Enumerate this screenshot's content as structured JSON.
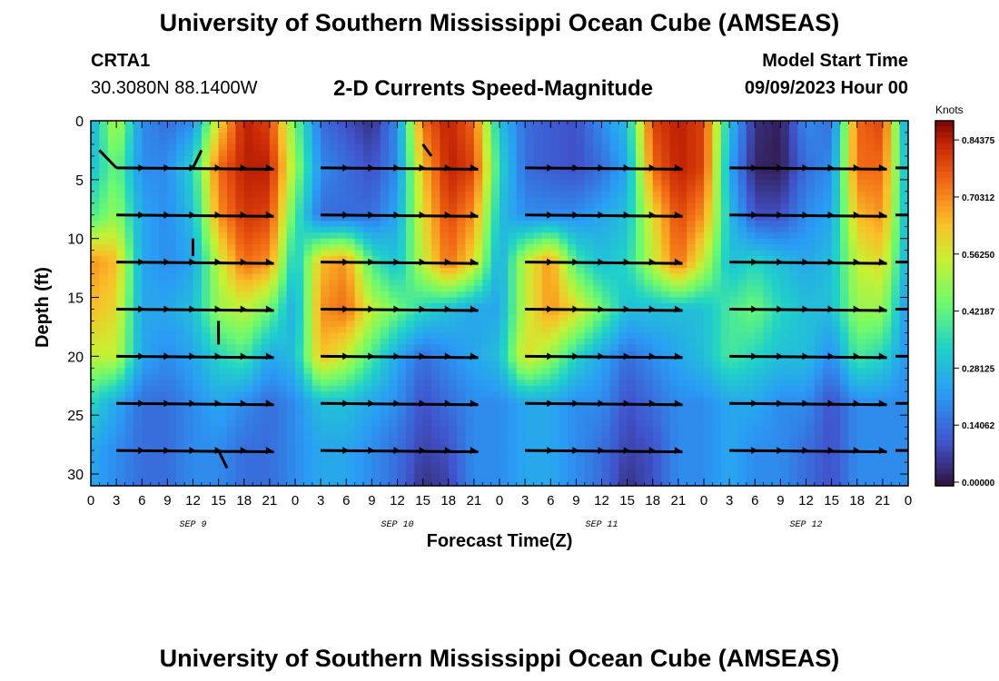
{
  "header": {
    "title": "University of Southern Mississippi Ocean Cube (AMSEAS)",
    "station": "CRTA1",
    "coords": "30.3080N  88.1400W",
    "subtitle": "2-D Currents Speed-Magnitude",
    "model_label": "Model Start Time",
    "model_time": "09/09/2023 Hour 00"
  },
  "footer": {
    "title": "University of Southern Mississippi Ocean Cube (AMSEAS)"
  },
  "chart_data": {
    "type": "heatmap",
    "title": "2-D Currents Speed-Magnitude",
    "xlabel": "Forecast Time(Z)",
    "ylabel": "Depth (ft)",
    "x_range_hours": [
      0,
      96
    ],
    "ylim": [
      0,
      31
    ],
    "y_inverted": true,
    "x_ticks": [
      "0",
      "3",
      "6",
      "9",
      "12",
      "15",
      "18",
      "21",
      "0",
      "3",
      "6",
      "9",
      "12",
      "15",
      "18",
      "21",
      "0",
      "3",
      "6",
      "9",
      "12",
      "15",
      "18",
      "21",
      "0",
      "3",
      "6",
      "9",
      "12",
      "15",
      "18",
      "21",
      "0"
    ],
    "y_ticks": [
      0,
      5,
      10,
      15,
      20,
      25,
      30
    ],
    "date_labels": [
      {
        "label": "SEP 9",
        "hour": 12
      },
      {
        "label": "SEP 10",
        "hour": 36
      },
      {
        "label": "SEP 11",
        "hour": 60
      },
      {
        "label": "SEP 12",
        "hour": 84
      }
    ],
    "colorbar": {
      "label": "Knots",
      "ticks": [
        "0.84375",
        "0.70312",
        "0.56250",
        "0.42187",
        "0.28125",
        "0.14062",
        "0.00000"
      ],
      "min": 0,
      "max": 0.9
    },
    "arrow_depths_ft": [
      4,
      8,
      12,
      16,
      20,
      24,
      28
    ],
    "speed_field": {
      "note": "Approximate current speed (knots) read from color shading; rows by depth, columns every 3 hours 0..96",
      "depths_ft": [
        0,
        4,
        8,
        12,
        16,
        20,
        24,
        28,
        31
      ],
      "hours": [
        0,
        3,
        6,
        9,
        12,
        15,
        18,
        21,
        24,
        27,
        30,
        33,
        36,
        39,
        42,
        45,
        48,
        51,
        54,
        57,
        60,
        63,
        66,
        69,
        72,
        75,
        78,
        81,
        84,
        87,
        90,
        93,
        96
      ],
      "values": [
        [
          0.25,
          0.55,
          0.2,
          0.15,
          0.2,
          0.6,
          0.85,
          0.8,
          0.45,
          0.15,
          0.1,
          0.05,
          0.2,
          0.75,
          0.85,
          0.75,
          0.3,
          0.15,
          0.12,
          0.1,
          0.2,
          0.3,
          0.8,
          0.85,
          0.8,
          0.3,
          0.05,
          0.02,
          0.2,
          0.15,
          0.75,
          0.8,
          0.2
        ],
        [
          0.3,
          0.45,
          0.2,
          0.2,
          0.35,
          0.75,
          0.85,
          0.85,
          0.5,
          0.2,
          0.15,
          0.1,
          0.2,
          0.65,
          0.85,
          0.8,
          0.35,
          0.15,
          0.12,
          0.1,
          0.15,
          0.25,
          0.75,
          0.85,
          0.8,
          0.25,
          0.03,
          0.02,
          0.15,
          0.2,
          0.75,
          0.75,
          0.25
        ],
        [
          0.4,
          0.5,
          0.25,
          0.2,
          0.3,
          0.7,
          0.82,
          0.8,
          0.4,
          0.15,
          0.15,
          0.15,
          0.25,
          0.6,
          0.8,
          0.7,
          0.3,
          0.2,
          0.2,
          0.2,
          0.25,
          0.3,
          0.6,
          0.8,
          0.7,
          0.3,
          0.1,
          0.1,
          0.2,
          0.25,
          0.65,
          0.7,
          0.25
        ],
        [
          0.7,
          0.65,
          0.25,
          0.2,
          0.25,
          0.55,
          0.75,
          0.7,
          0.3,
          0.65,
          0.7,
          0.4,
          0.3,
          0.55,
          0.75,
          0.6,
          0.25,
          0.55,
          0.7,
          0.4,
          0.3,
          0.35,
          0.55,
          0.75,
          0.55,
          0.3,
          0.35,
          0.3,
          0.25,
          0.3,
          0.55,
          0.6,
          0.25
        ],
        [
          0.65,
          0.6,
          0.25,
          0.25,
          0.3,
          0.5,
          0.55,
          0.45,
          0.25,
          0.7,
          0.75,
          0.55,
          0.45,
          0.35,
          0.3,
          0.25,
          0.25,
          0.55,
          0.7,
          0.6,
          0.45,
          0.3,
          0.3,
          0.3,
          0.3,
          0.4,
          0.45,
          0.35,
          0.3,
          0.3,
          0.5,
          0.5,
          0.2
        ],
        [
          0.55,
          0.55,
          0.25,
          0.2,
          0.25,
          0.35,
          0.4,
          0.25,
          0.3,
          0.65,
          0.55,
          0.4,
          0.25,
          0.15,
          0.2,
          0.25,
          0.3,
          0.6,
          0.5,
          0.35,
          0.25,
          0.15,
          0.2,
          0.25,
          0.3,
          0.4,
          0.35,
          0.3,
          0.3,
          0.2,
          0.4,
          0.35,
          0.2
        ],
        [
          0.35,
          0.25,
          0.15,
          0.15,
          0.2,
          0.25,
          0.2,
          0.15,
          0.2,
          0.3,
          0.3,
          0.25,
          0.2,
          0.1,
          0.15,
          0.2,
          0.2,
          0.25,
          0.25,
          0.2,
          0.2,
          0.1,
          0.15,
          0.2,
          0.2,
          0.25,
          0.25,
          0.2,
          0.2,
          0.1,
          0.2,
          0.2,
          0.2
        ],
        [
          0.25,
          0.2,
          0.15,
          0.15,
          0.2,
          0.2,
          0.15,
          0.15,
          0.2,
          0.25,
          0.25,
          0.2,
          0.15,
          0.08,
          0.1,
          0.2,
          0.2,
          0.25,
          0.25,
          0.2,
          0.15,
          0.08,
          0.1,
          0.2,
          0.2,
          0.25,
          0.2,
          0.2,
          0.15,
          0.1,
          0.2,
          0.2,
          0.2
        ],
        [
          0.25,
          0.2,
          0.15,
          0.15,
          0.2,
          0.2,
          0.15,
          0.15,
          0.2,
          0.25,
          0.25,
          0.2,
          0.15,
          0.05,
          0.08,
          0.2,
          0.2,
          0.25,
          0.25,
          0.2,
          0.15,
          0.05,
          0.1,
          0.2,
          0.2,
          0.25,
          0.2,
          0.2,
          0.15,
          0.1,
          0.2,
          0.2,
          0.2
        ]
      ]
    }
  }
}
